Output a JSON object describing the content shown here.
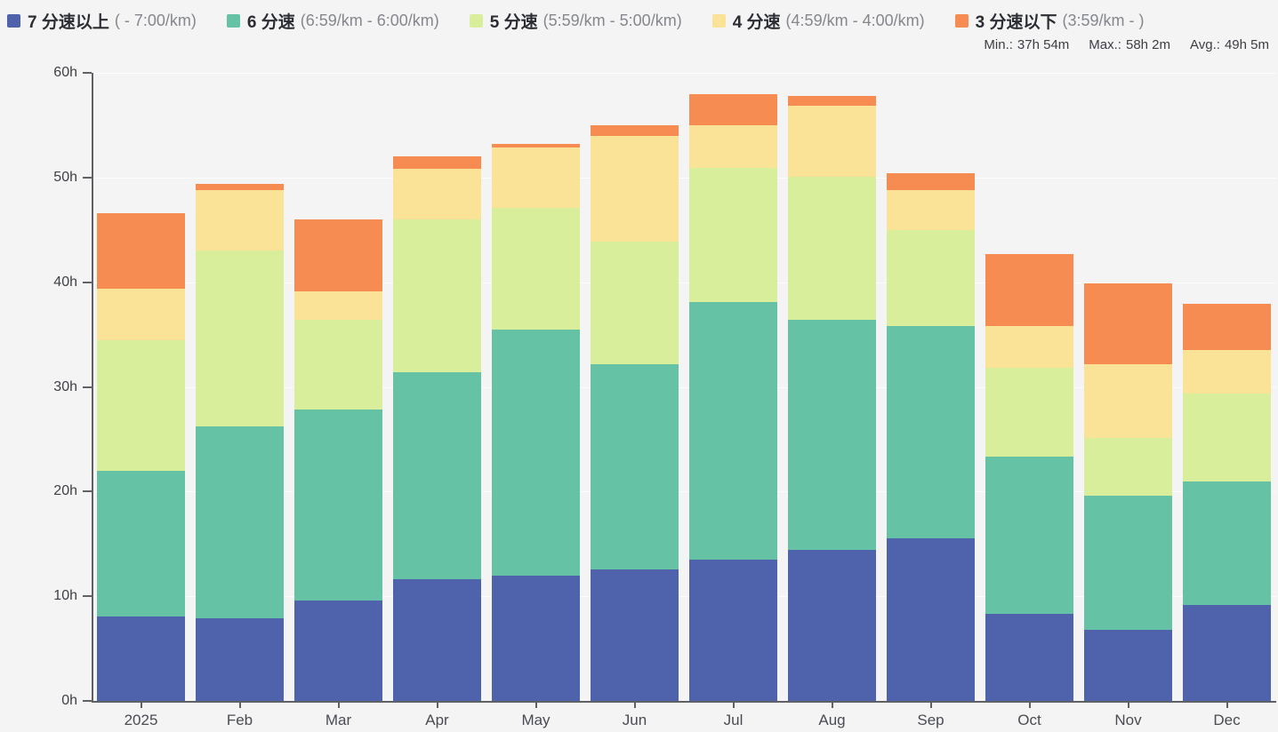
{
  "legend": [
    {
      "label": "7 分速以上",
      "range": "( - 7:00/km)",
      "color": "#4f63ad"
    },
    {
      "label": "6 分速",
      "range": "(6:59/km - 6:00/km)",
      "color": "#66c2a5"
    },
    {
      "label": "5 分速",
      "range": "(5:59/km - 5:00/km)",
      "color": "#d8ee9b"
    },
    {
      "label": "4 分速",
      "range": "(4:59/km - 4:00/km)",
      "color": "#fae396"
    },
    {
      "label": "3 分速以下",
      "range": "(3:59/km - )",
      "color": "#f68c51"
    }
  ],
  "stats": [
    {
      "label": "Min.:",
      "value": "37h 54m"
    },
    {
      "label": "Max.:",
      "value": "58h 2m"
    },
    {
      "label": "Avg.:",
      "value": "49h 5m"
    }
  ],
  "chart_data": {
    "type": "bar",
    "stacked": true,
    "unit": "hours",
    "categories": [
      "2025",
      "Feb",
      "Mar",
      "Apr",
      "May",
      "Jun",
      "Jul",
      "Aug",
      "Sep",
      "Oct",
      "Nov",
      "Dec"
    ],
    "series": [
      {
        "name": "7 分速以上 ( - 7:00/km)",
        "color": "#4f63ad",
        "values": [
          8.1,
          7.9,
          9.6,
          11.6,
          12.0,
          12.6,
          13.5,
          14.4,
          15.5,
          8.3,
          6.8,
          9.2
        ]
      },
      {
        "name": "6 分速 (6:59/km - 6:00/km)",
        "color": "#66c2a5",
        "values": [
          13.9,
          18.3,
          18.2,
          19.8,
          23.5,
          19.6,
          24.6,
          22.0,
          20.3,
          15.0,
          12.8,
          11.8
        ]
      },
      {
        "name": "5 分速 (5:59/km - 5:00/km)",
        "color": "#d8ee9b",
        "values": [
          12.5,
          16.8,
          8.6,
          14.6,
          11.6,
          11.7,
          12.8,
          13.7,
          9.2,
          8.5,
          5.5,
          8.4
        ]
      },
      {
        "name": "4 分速 (4:59/km - 4:00/km)",
        "color": "#fae396",
        "values": [
          4.9,
          5.8,
          2.7,
          4.8,
          5.8,
          10.1,
          4.1,
          6.8,
          3.8,
          4.0,
          7.1,
          4.1
        ]
      },
      {
        "name": "3 分速以下 (3:59/km - )",
        "color": "#f68c51",
        "values": [
          7.2,
          0.6,
          6.9,
          1.2,
          0.3,
          1.0,
          3.0,
          0.9,
          1.6,
          6.9,
          7.7,
          4.4
        ]
      }
    ],
    "totals": [
      46.6,
      49.4,
      46.0,
      52.0,
      53.2,
      55.0,
      58.0,
      57.8,
      50.4,
      42.7,
      39.9,
      37.9
    ],
    "ylim": [
      0,
      60
    ],
    "yticks": [
      0,
      10,
      20,
      30,
      40,
      50,
      60
    ],
    "ytick_labels": [
      "0h",
      "10h",
      "20h",
      "30h",
      "40h",
      "50h",
      "60h"
    ],
    "grid": true,
    "legend_position": "top"
  }
}
